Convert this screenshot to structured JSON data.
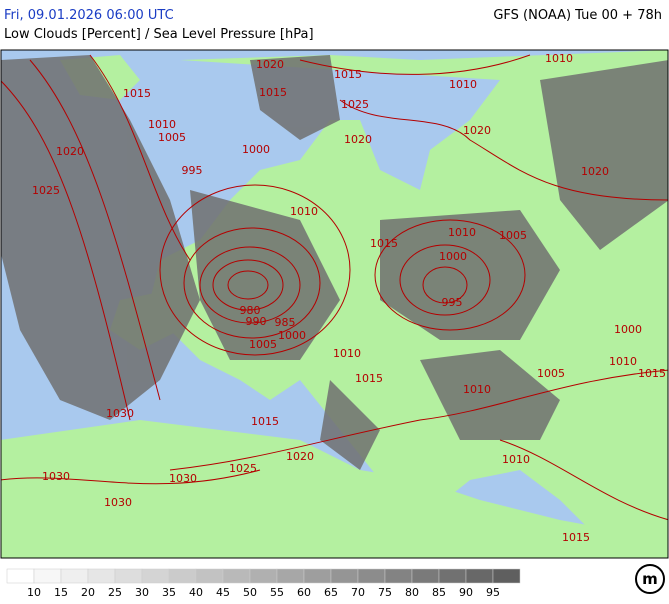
{
  "header": {
    "title": "Fri, 09.01.2026 06:00 UTC",
    "model": "GFS (NOAA) Tue 00 + 78h",
    "subtitle": "Low Clouds [Percent] / Sea Level Pressure [hPa]"
  },
  "isobar_labels": [
    1020,
    1015,
    1010,
    1015,
    1015,
    1010,
    1025,
    1010,
    1005,
    1020,
    1020,
    1020,
    1000,
    995,
    1020,
    1025,
    1010,
    1015,
    1010,
    1005,
    1000,
    995,
    980,
    990,
    985,
    1000,
    1005,
    1010,
    1000,
    1010,
    1015,
    1005,
    1015,
    1010,
    1030,
    1015,
    1020,
    1010,
    1025,
    1030,
    1030,
    1030,
    1015
  ],
  "legend": {
    "ticks": [
      10,
      15,
      20,
      25,
      30,
      35,
      40,
      45,
      50,
      55,
      60,
      65,
      70,
      75,
      80,
      85,
      90,
      95
    ],
    "colors": [
      "#ffffff",
      "#f7f7f7",
      "#efefef",
      "#e6e6e6",
      "#dddddd",
      "#d4d4d4",
      "#cbcbcb",
      "#c2c2c2",
      "#b9b9b9",
      "#b0b0b0",
      "#a7a7a7",
      "#9e9e9e",
      "#959595",
      "#8c8c8c",
      "#838383",
      "#7a7a7a",
      "#717171",
      "#686868",
      "#5f5f5f"
    ]
  },
  "logo": "m"
}
